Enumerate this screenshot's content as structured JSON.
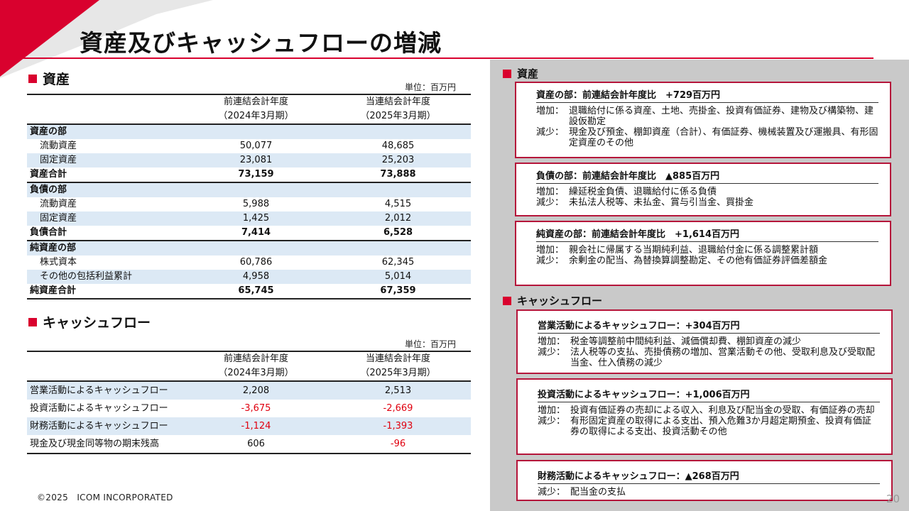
{
  "title": "資産及びキャッシュフローの増減",
  "left": {
    "assets": {
      "heading": "資産",
      "unit": "単位：百万円",
      "col_prev": [
        "前連結会計年度",
        "（2024年3月期）"
      ],
      "col_curr": [
        "当連結会計年度",
        "（2025年3月期）"
      ],
      "rows": [
        {
          "label": "資産の部",
          "prev": "",
          "curr": "",
          "kind": "cat"
        },
        {
          "label": "流動資産",
          "prev": "50,077",
          "curr": "48,685",
          "kind": "item"
        },
        {
          "label": "固定資産",
          "prev": "23,081",
          "curr": "25,203",
          "kind": "item-shade"
        },
        {
          "label": "資産合計",
          "prev": "73,159",
          "curr": "73,888",
          "kind": "total"
        },
        {
          "label": "負債の部",
          "prev": "",
          "curr": "",
          "kind": "cat"
        },
        {
          "label": "流動資産",
          "prev": "5,988",
          "curr": "4,515",
          "kind": "item"
        },
        {
          "label": "固定資産",
          "prev": "1,425",
          "curr": "2,012",
          "kind": "item-shade"
        },
        {
          "label": "負債合計",
          "prev": "7,414",
          "curr": "6,528",
          "kind": "total"
        },
        {
          "label": "純資産の部",
          "prev": "",
          "curr": "",
          "kind": "cat"
        },
        {
          "label": "株式資本",
          "prev": "60,786",
          "curr": "62,345",
          "kind": "item"
        },
        {
          "label": "その他の包括利益累計",
          "prev": "4,958",
          "curr": "5,014",
          "kind": "item-shade"
        },
        {
          "label": "純資産合計",
          "prev": "65,745",
          "curr": "67,359",
          "kind": "total-last"
        }
      ]
    },
    "cashflow": {
      "heading": "キャッシュフロー",
      "unit": "単位：百万円",
      "col_prev": [
        "前連結会計年度",
        "（2024年3月期）"
      ],
      "col_curr": [
        "当連結会計年度",
        "（2025年3月期）"
      ],
      "rows": [
        {
          "label": "営業活動によるキャッシュフロー",
          "prev": "2,208",
          "curr": "2,513",
          "shade": true,
          "prev_neg": false,
          "curr_neg": false
        },
        {
          "label": "投資活動によるキャッシュフロー",
          "prev": "-3,675",
          "curr": "-2,669",
          "shade": false,
          "prev_neg": true,
          "curr_neg": true
        },
        {
          "label": "財務活動によるキャッシュフロー",
          "prev": "-1,124",
          "curr": "-1,393",
          "shade": true,
          "prev_neg": true,
          "curr_neg": true
        },
        {
          "label": "現金及び現金同等物の期末残高",
          "prev": "606",
          "curr": "-96",
          "shade": false,
          "prev_neg": false,
          "curr_neg": true
        }
      ]
    }
  },
  "right": {
    "assets_heading": "資産",
    "cashflow_heading": "キャッシュフロー",
    "cards": [
      {
        "title": "資産の部：前連結会計年度比　+729百万円",
        "lines": [
          {
            "label": "増加：",
            "text": "退職給付に係る資産、土地、売掛金、投資有価証券、建物及び構築物、建設仮勘定"
          },
          {
            "label": "減少：",
            "text": "現金及び預金、棚卸資産（合計）、有価証券、機械装置及び運搬具、有形固定資産のその他"
          }
        ]
      },
      {
        "title": "負債の部：前連結会計年度比　▲885百万円",
        "lines": [
          {
            "label": "増加：",
            "text": "繰延税金負債、退職給付に係る負債"
          },
          {
            "label": "減少：",
            "text": "未払法人税等、未払金、賞与引当金、買掛金"
          }
        ]
      },
      {
        "title": "純資産の部：前連結会計年度比　+1,614百万円",
        "lines": [
          {
            "label": "増加：",
            "text": "親会社に帰属する当期純利益、退職給付金に係る調整累計額"
          },
          {
            "label": "減少：",
            "text": "余剰金の配当、為替換算調整勘定、その他有価証券評価差額金"
          }
        ]
      },
      {
        "title": "営業活動によるキャッシュフロー：+304百万円",
        "lines": [
          {
            "label": "増加：",
            "text": "税金等調整前中間純利益、減価償却費、棚卸資産の減少"
          },
          {
            "label": "減少：",
            "text": "法人税等の支払、売掛債務の増加、営業活動その他、受取利息及び受取配当金、仕入債務の減少"
          }
        ]
      },
      {
        "title": "投資活動によるキャッシュフロー：+1,006百万円",
        "lines": [
          {
            "label": "増加：",
            "text": "投資有価証券の売却による収入、利息及び配当金の受取、有価証券の売却"
          },
          {
            "label": "減少：",
            "text": "有形固定資産の取得による支出、預入危難3か月超定期預金、投資有価証券の取得による支出、投資活動その他"
          }
        ]
      },
      {
        "title": "財務活動によるキャッシュフロー：▲268百万円",
        "lines": [
          {
            "label": "減少：",
            "text": "配当金の支払"
          }
        ]
      }
    ]
  },
  "footer": "©2025　ICOM INCORPORATED",
  "page_number": "20",
  "colors": {
    "accent": "#d9012e",
    "negative": "#e0000f",
    "row_shade": "#dce9f5",
    "card_border": "#b5153a",
    "panel_bg": "#c9c9c9"
  }
}
